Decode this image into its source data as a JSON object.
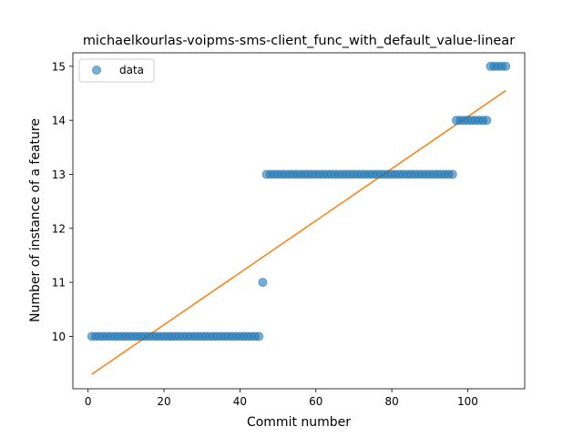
{
  "chart_data": {
    "type": "scatter",
    "title": "michaelkourlas-voipms-sms-client_func_with_default_value-linear",
    "xlabel": "Commit number",
    "ylabel": "Number of instance of a feature",
    "xlim": [
      -4,
      115
    ],
    "ylim": [
      9.03,
      15.25
    ],
    "xticks": [
      0,
      20,
      40,
      60,
      80,
      100
    ],
    "yticks": [
      10,
      11,
      12,
      13,
      14,
      15
    ],
    "legend": {
      "placement": "upper-left",
      "entries": [
        "data"
      ]
    },
    "colors": {
      "data": "#1f77b4",
      "fit": "#ff7f0e"
    },
    "series": [
      {
        "name": "data",
        "style": "markers",
        "segments": [
          {
            "x_start": 1,
            "x_end": 45,
            "y": 10
          },
          {
            "x_start": 46,
            "x_end": 46,
            "y": 11
          },
          {
            "x_start": 47,
            "x_end": 96,
            "y": 13
          },
          {
            "x_start": 97,
            "x_end": 105,
            "y": 14
          },
          {
            "x_start": 106,
            "x_end": 110,
            "y": 15
          }
        ]
      },
      {
        "style": "line",
        "x": [
          1,
          110
        ],
        "y": [
          9.3,
          14.55
        ]
      }
    ]
  }
}
